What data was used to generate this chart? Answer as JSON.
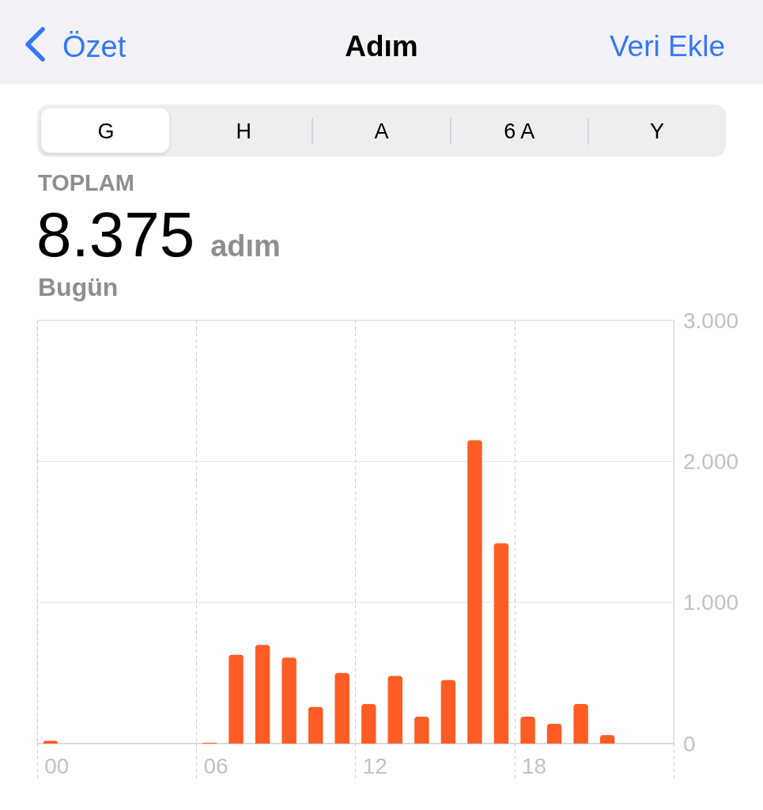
{
  "chart_data": {
    "type": "bar",
    "title": "Adım",
    "annotations": [
      "Özet",
      "Veri Ekle",
      "G",
      "H",
      "A",
      "6 A",
      "Y",
      "TOPLAM",
      "8.375",
      "adım",
      "Bugün"
    ],
    "categories": [
      "00",
      null,
      null,
      null,
      null,
      null,
      "06",
      null,
      null,
      null,
      null,
      null,
      "12",
      null,
      null,
      null,
      null,
      null,
      "18",
      null,
      null,
      null,
      null,
      null
    ],
    "values": [
      20,
      null,
      null,
      null,
      null,
      null,
      5,
      630,
      700,
      610,
      260,
      500,
      280,
      480,
      190,
      450,
      2150,
      1420,
      190,
      140,
      280,
      60,
      null,
      null
    ],
    "color": "#fd5d24",
    "ylim": [
      0,
      3000
    ],
    "yticks": [
      0,
      {
        "value": 1000,
        "label": "1.000"
      },
      {
        "value": 2000,
        "label": "2.000"
      },
      {
        "value": 3000,
        "label": "3.000"
      }
    ],
    "grid": true
  }
}
